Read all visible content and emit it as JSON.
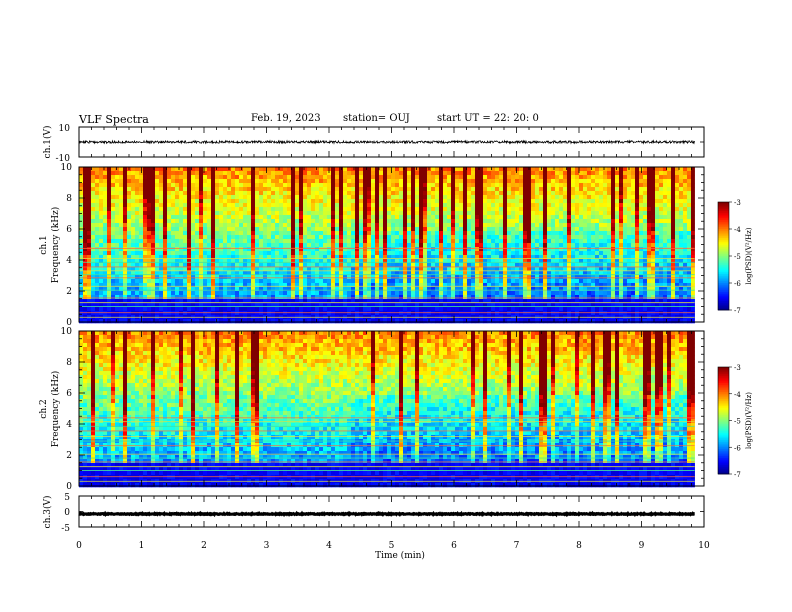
{
  "header": {
    "title": "VLF Spectra",
    "date": "Feb. 19, 2023",
    "station": "station= OUJ",
    "start": "start  UT =   22: 20: 0"
  },
  "chart_data": [
    {
      "type": "line",
      "name": "ch1-waveform",
      "ylabel": "ch.1(V)",
      "ylim": [
        -10,
        10
      ],
      "xlim": [
        0,
        10
      ],
      "yticks": [
        "10",
        "-10"
      ],
      "trace_level": 0
    },
    {
      "type": "heatmap",
      "name": "ch1-spectrogram",
      "ylabel": "ch.1\nFrequency (kHz)",
      "xlim": [
        0,
        10
      ],
      "data_end_min": 9.85,
      "ylim": [
        0,
        10
      ],
      "yticks": [
        "0",
        "2",
        "4",
        "6",
        "8",
        "10"
      ],
      "colorbar": {
        "label": "log(PSD)(V²/Hz)",
        "ticks": [
          "-3",
          "-4",
          "-5",
          "-6",
          "-7"
        ],
        "range": [
          -7,
          -3
        ],
        "colormap": [
          "#000080",
          "#0000ff",
          "#0080ff",
          "#00ffff",
          "#80ff80",
          "#ffff00",
          "#ff8000",
          "#ff0000",
          "#800000"
        ]
      },
      "hum_lines_khz": [
        0.3,
        0.6,
        1.0,
        1.25,
        1.55,
        2.05,
        2.3,
        2.85,
        3.05,
        3.3,
        3.55,
        3.85,
        4.1,
        4.75
      ],
      "notes_text": []
    },
    {
      "type": "heatmap",
      "name": "ch2-spectrogram",
      "ylabel": "ch.2\nFrequency (kHz)",
      "xlim": [
        0,
        10
      ],
      "data_end_min": 9.85,
      "ylim": [
        0,
        10
      ],
      "yticks": [
        "0",
        "2",
        "4",
        "6",
        "8",
        "10"
      ],
      "colorbar": {
        "label": "log(PSD)(V²/Hz)",
        "ticks": [
          "-3",
          "-4",
          "-5",
          "-6",
          "-7"
        ],
        "range": [
          -7,
          -3
        ],
        "colormap": [
          "#000080",
          "#0000ff",
          "#0080ff",
          "#00ffff",
          "#80ff80",
          "#ffff00",
          "#ff8000",
          "#ff0000",
          "#800000"
        ]
      },
      "hum_lines_khz": [
        0.3,
        0.6,
        1.0,
        1.25,
        1.55,
        1.8,
        2.05,
        2.6,
        2.9,
        3.2,
        3.55,
        3.85,
        4.15,
        4.4
      ],
      "notes_text": []
    },
    {
      "type": "line",
      "name": "ch3-waveform",
      "ylabel": "ch.3(V)",
      "ylim": [
        -5,
        5
      ],
      "xlim": [
        0,
        10
      ],
      "yticks": [
        "5",
        "0",
        "-5"
      ],
      "trace_level": -0.8
    }
  ],
  "xaxis": {
    "label": "Time (min)",
    "ticks": [
      "0",
      "1",
      "2",
      "3",
      "4",
      "5",
      "6",
      "7",
      "8",
      "9",
      "10"
    ]
  }
}
